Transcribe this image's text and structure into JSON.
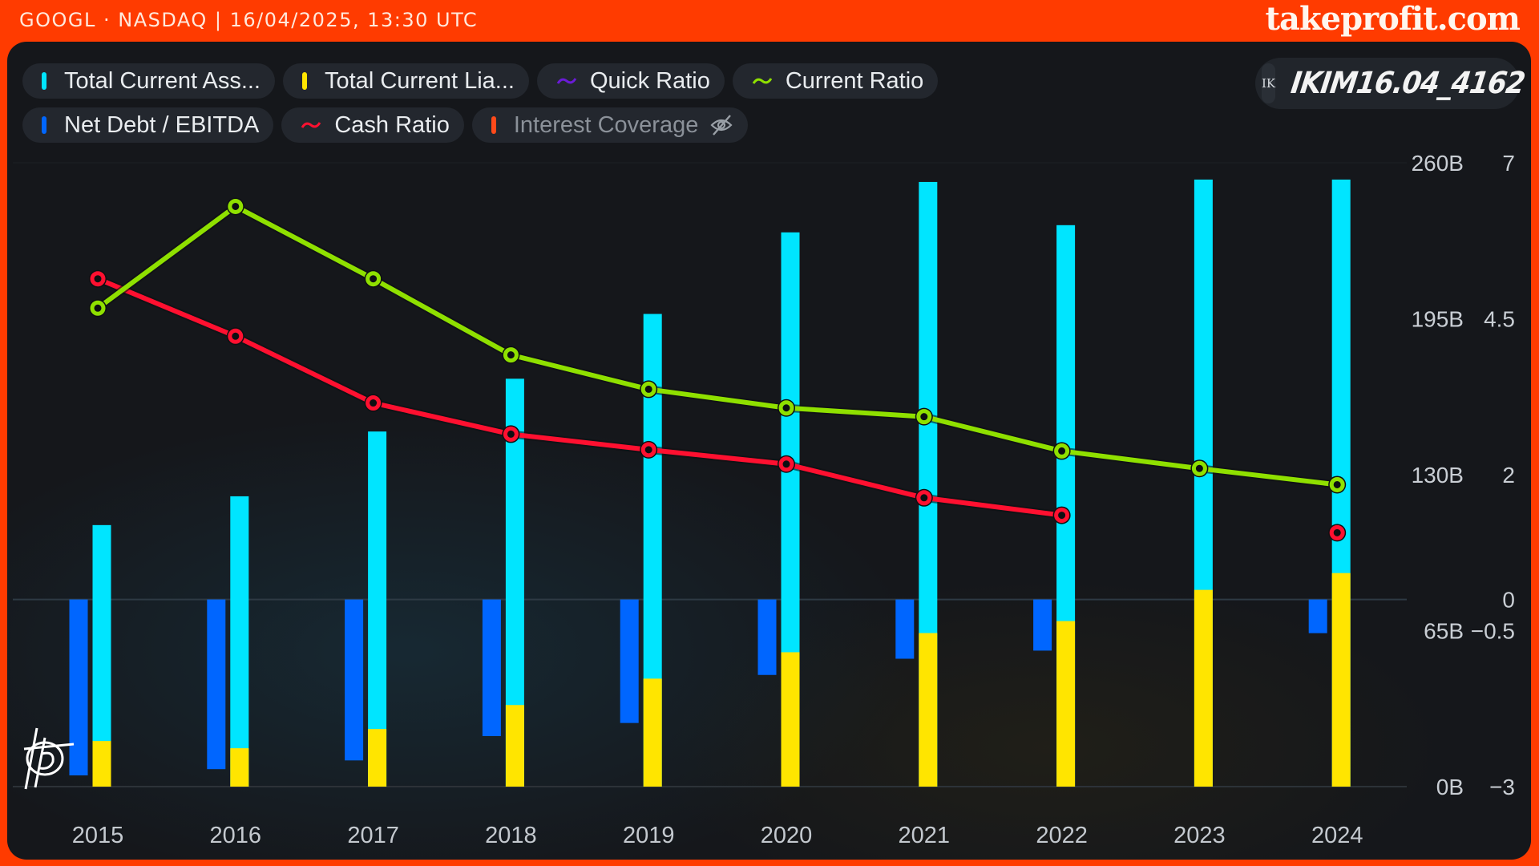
{
  "header": {
    "ticker": "GOOGL · NASDAQ | 16/04/2025, 13:30 UTC",
    "brand": "takeprofit.com"
  },
  "user": {
    "avatar_initials": "IK",
    "tag": "IKIM16.04_4162"
  },
  "legend": [
    {
      "label": "Total Current Ass...",
      "swatch": "bar",
      "color": "#00e5ff",
      "hidden": false
    },
    {
      "label": "Total Current Lia...",
      "swatch": "bar",
      "color": "#ffe500",
      "hidden": false
    },
    {
      "label": "Quick Ratio",
      "swatch": "wave",
      "color": "#6a1bd6",
      "hidden": false
    },
    {
      "label": "Current Ratio",
      "swatch": "wave",
      "color": "#8fe000",
      "hidden": false
    },
    {
      "label": "Net Debt / EBITDA",
      "swatch": "bar",
      "color": "#0066ff",
      "hidden": false
    },
    {
      "label": "Cash Ratio",
      "swatch": "wave",
      "color": "#ff1030",
      "hidden": false
    },
    {
      "label": "Interest Coverage",
      "swatch": "bar",
      "color": "#ff4a1a",
      "hidden": true,
      "icon": "eye-off-icon"
    }
  ],
  "chart_data": {
    "type": "bar",
    "title": "",
    "categories": [
      "2015",
      "2016",
      "2017",
      "2018",
      "2019",
      "2020",
      "2021",
      "2022",
      "2023",
      "2024"
    ],
    "left_axis": {
      "unit": "B",
      "range": [
        0,
        260
      ],
      "ticks": [
        "260B",
        "195B",
        "130B",
        "65B",
        "0B"
      ],
      "tick_values": [
        260,
        195,
        130,
        65,
        0
      ]
    },
    "right_axis": {
      "range": [
        -3,
        7
      ],
      "ticks": [
        "7",
        "4.5",
        "2",
        "0",
        "−0.5",
        "−3"
      ],
      "tick_values": [
        7,
        4.5,
        2,
        0,
        -0.5,
        -3
      ]
    },
    "grid": true,
    "series": [
      {
        "name": "Total Current Assets",
        "type": "bar",
        "axis": "left",
        "color": "#00e5ff",
        "values": [
          109,
          121,
          148,
          170,
          197,
          231,
          252,
          234,
          253,
          253
        ]
      },
      {
        "name": "Total Current Liabilities",
        "type": "bar",
        "axis": "left",
        "color": "#ffe500",
        "values": [
          19,
          16,
          24,
          34,
          45,
          56,
          64,
          69,
          82,
          89
        ]
      },
      {
        "name": "Net Debt / EBITDA",
        "type": "bar",
        "axis": "right",
        "color": "#0066ff",
        "values": [
          -2.82,
          -2.72,
          -2.58,
          -2.19,
          -1.98,
          -1.21,
          -0.95,
          -0.82,
          null,
          -0.54
        ]
      },
      {
        "name": "Current Ratio",
        "type": "line",
        "axis": "right",
        "color": "#8fe000",
        "values": [
          4.67,
          6.3,
          5.14,
          3.92,
          3.37,
          3.07,
          2.93,
          2.38,
          2.1,
          1.84
        ]
      },
      {
        "name": "Cash Ratio",
        "type": "line",
        "axis": "right",
        "color": "#ff1030",
        "values": [
          5.14,
          4.22,
          3.15,
          2.65,
          2.4,
          2.17,
          1.63,
          1.35,
          null,
          1.07
        ]
      },
      {
        "name": "Quick Ratio",
        "type": "line",
        "axis": "right",
        "color": "#6a1bd6",
        "values": []
      },
      {
        "name": "Interest Coverage",
        "type": "bar",
        "axis": "right",
        "color": "#ff4a1a",
        "hidden": true,
        "values": []
      }
    ]
  }
}
